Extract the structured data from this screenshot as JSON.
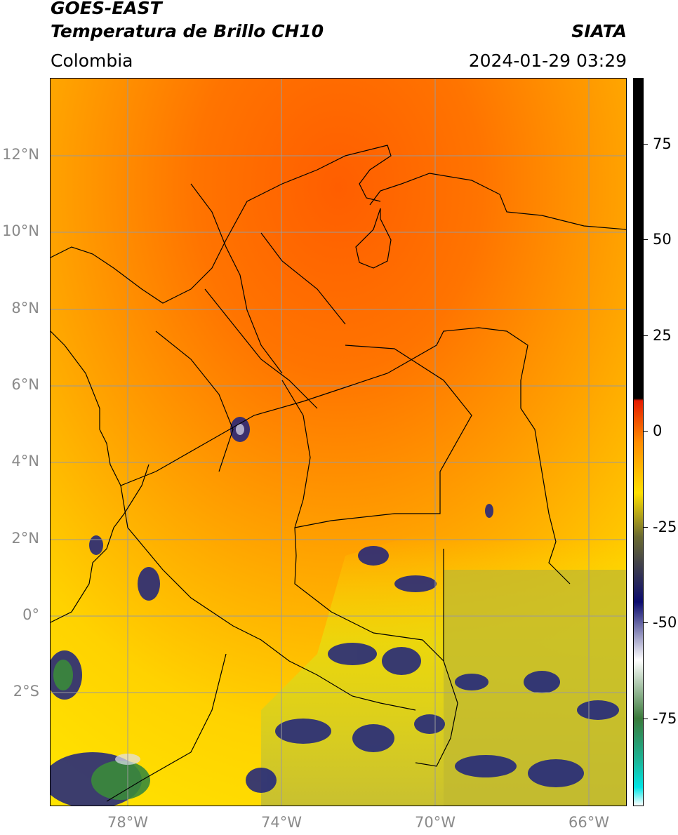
{
  "header": {
    "title_line1": "GOES-EAST",
    "title_line2": "Temperatura de Brillo CH10",
    "brand": "SIATA",
    "region": "Colombia",
    "timestamp": "2024-01-29 03:29"
  },
  "map": {
    "lat_ticks": [
      "12°N",
      "10°N",
      "8°N",
      "6°N",
      "4°N",
      "2°N",
      "0°",
      "2°S"
    ],
    "lon_ticks": [
      "78°W",
      "74°W",
      "70°W",
      "66°W"
    ],
    "colors": {
      "warm_orange": "#ff6a00",
      "mid_orange": "#ff9a00",
      "yellow": "#ffd500",
      "olive": "#b8b030",
      "navy": "#1a2080",
      "green": "#4a9a4a",
      "grid": "#9a9a9a",
      "border": "#000000"
    }
  },
  "colorbar": {
    "labels": [
      "75",
      "50",
      "25",
      "0",
      "-25",
      "-50",
      "-75"
    ],
    "colors": [
      "#000000",
      "#e41a00",
      "#ff8c00",
      "#ffe000",
      "#6a6a30",
      "#0b0b6e",
      "#ffffff",
      "#3a7a3a",
      "#1ab79a",
      "#00e5e5",
      "#ffffff"
    ]
  }
}
